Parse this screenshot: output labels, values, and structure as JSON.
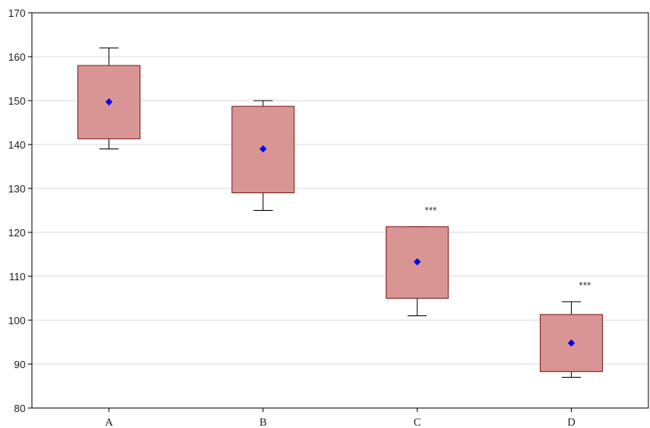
{
  "chart_data": {
    "type": "boxplot",
    "title": "",
    "xlabel": "",
    "ylabel": "",
    "ylim": [
      80,
      170
    ],
    "yticks": [
      80,
      90,
      100,
      110,
      120,
      130,
      140,
      150,
      160,
      170
    ],
    "grid": "horizontal",
    "categories": [
      "A",
      "B",
      "C",
      "D"
    ],
    "boxes": [
      {
        "category": "A",
        "whisker_low": 139,
        "q1": 141.3,
        "q3": 158,
        "whisker_high": 162,
        "mean": 149.7,
        "annotation": ""
      },
      {
        "category": "B",
        "whisker_low": 125,
        "q1": 129,
        "q3": 148.7,
        "whisker_high": 150,
        "mean": 139,
        "annotation": ""
      },
      {
        "category": "C",
        "whisker_low": 101,
        "q1": 105,
        "q3": 121.3,
        "whisker_high": 121.3,
        "mean": 113.3,
        "annotation": "***"
      },
      {
        "category": "D",
        "whisker_low": 87,
        "q1": 88.3,
        "q3": 101.3,
        "whisker_high": 104.2,
        "mean": 94.8,
        "annotation": "***"
      }
    ],
    "colors": {
      "box_fill": "#d99594",
      "box_stroke": "#7a1a1a",
      "mean_marker": "#0000ee",
      "grid": "#d8d8d8",
      "axis": "#000000"
    }
  }
}
